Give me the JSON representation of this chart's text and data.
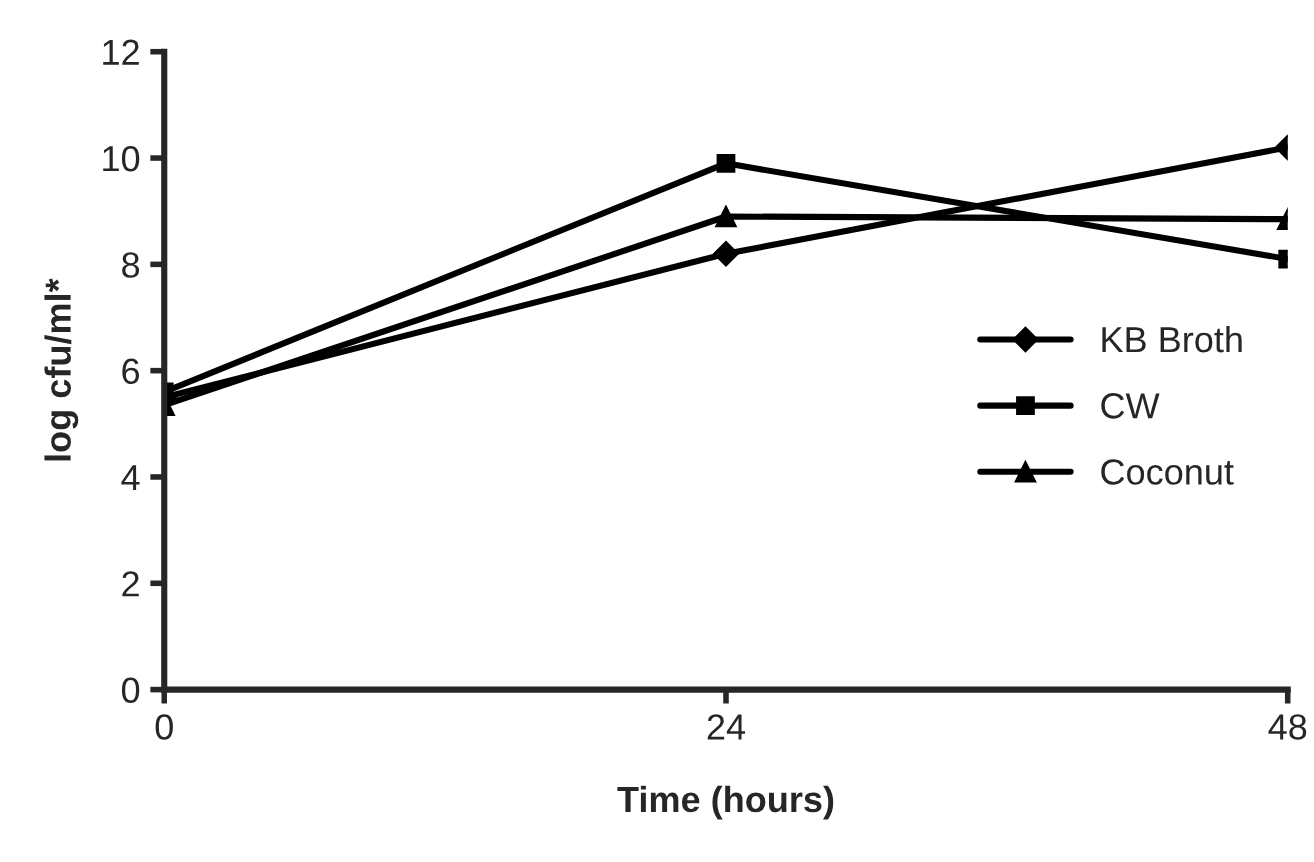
{
  "chart_data": {
    "type": "line",
    "xlabel": "Time (hours)",
    "ylabel": "log cfu/ml*",
    "x": [
      0,
      24,
      48
    ],
    "xlim": [
      0,
      48
    ],
    "xticks": [
      0,
      24,
      48
    ],
    "ylim": [
      0,
      12
    ],
    "yticks": [
      0,
      2,
      4,
      6,
      8,
      10,
      12
    ],
    "series": [
      {
        "name": "KB Broth",
        "color": "#000000",
        "marker": "diamond",
        "values": [
          5.5,
          8.2,
          10.2
        ]
      },
      {
        "name": "CW",
        "color": "#000000",
        "marker": "square",
        "values": [
          5.6,
          9.9,
          8.1
        ]
      },
      {
        "name": "Coconut",
        "color": "#000000",
        "marker": "triangle",
        "values": [
          5.35,
          8.9,
          8.85
        ]
      }
    ],
    "line_style": "solid",
    "grid": false,
    "legend": "right"
  }
}
